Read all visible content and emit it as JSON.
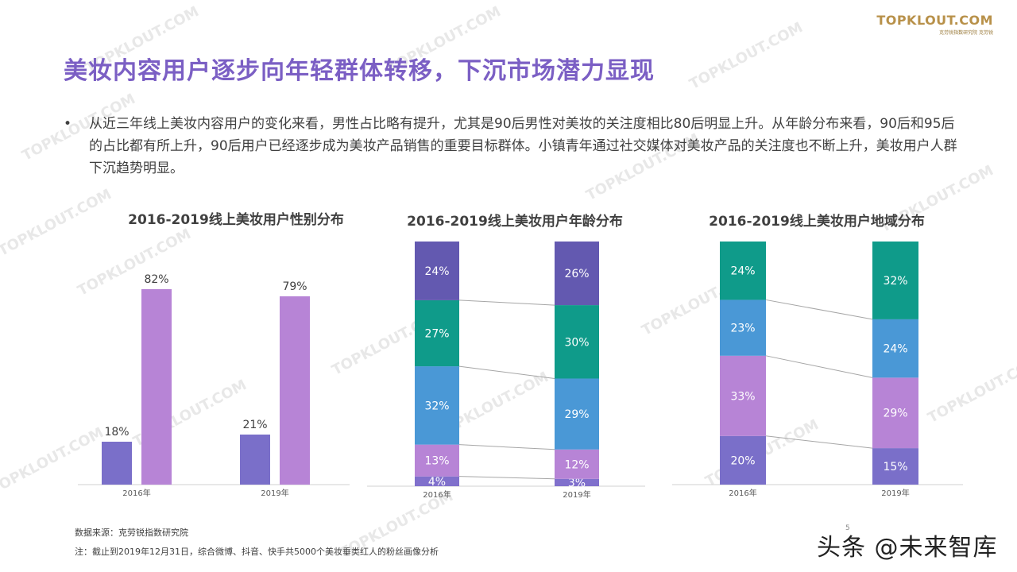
{
  "logo": {
    "main": "TOPKLOUT.COM",
    "sub": "克劳锐指数研究院 克劳锐"
  },
  "title": "美妆内容用户逐步向年轻群体转移，下沉市场潜力显现",
  "bullet": {
    "dot": "•",
    "text": "从近三年线上美妆内容用户的变化来看，男性占比略有提升，尤其是90后男性对美妆的关注度相比80后明显上升。从年龄分布来看，90后和95后的占比都有所上升，90后用户已经逐步成为美妆产品销售的重要目标群体。小镇青年通过社交媒体对美妆产品的关注度也不断上升，美妆用户人群下沉趋势明显。"
  },
  "chart_data": [
    {
      "type": "bar",
      "title": "2016-2019线上美妆用户性别分布",
      "categories": [
        "2016年",
        "2019年"
      ],
      "series": [
        {
          "values": [
            18,
            21
          ],
          "labels": [
            "18%",
            "21%"
          ],
          "color": "#7a6fc9"
        },
        {
          "values": [
            82,
            79
          ],
          "labels": [
            "82%",
            "79%"
          ],
          "color": "#b784d6"
        }
      ],
      "ylim": [
        0,
        100
      ]
    },
    {
      "type": "bar",
      "stacked": true,
      "title": "2016-2019线上美妆用户年龄分布",
      "categories": [
        "2016年",
        "2019年"
      ],
      "series": [
        {
          "values": [
            4,
            3
          ],
          "labels": [
            "4%",
            "3%"
          ],
          "color": "#8070cc"
        },
        {
          "values": [
            13,
            12
          ],
          "labels": [
            "13%",
            "12%"
          ],
          "color": "#b784d6"
        },
        {
          "values": [
            32,
            29
          ],
          "labels": [
            "32%",
            "29%"
          ],
          "color": "#4a98d6"
        },
        {
          "values": [
            27,
            30
          ],
          "labels": [
            "27%",
            "30%"
          ],
          "color": "#0f9b8a"
        },
        {
          "values": [
            24,
            26
          ],
          "labels": [
            "24%",
            "26%"
          ],
          "color": "#6359b0"
        }
      ]
    },
    {
      "type": "bar",
      "stacked": true,
      "title": "2016-2019线上美妆用户地域分布",
      "categories": [
        "2016年",
        "2019年"
      ],
      "series": [
        {
          "values": [
            20,
            15
          ],
          "labels": [
            "20%",
            "15%"
          ],
          "color": "#7a6fc9"
        },
        {
          "values": [
            33,
            29
          ],
          "labels": [
            "33%",
            "29%"
          ],
          "color": "#b784d6"
        },
        {
          "values": [
            23,
            24
          ],
          "labels": [
            "23%",
            "24%"
          ],
          "color": "#4a98d6"
        },
        {
          "values": [
            24,
            32
          ],
          "labels": [
            "24%",
            "32%"
          ],
          "color": "#0f9b8a"
        }
      ]
    }
  ],
  "source": "数据来源：克劳锐指数研究院",
  "note": "注：截止到2019年12月31日，综合微博、抖音、快手共5000个美妆垂类红人的粉丝画像分析",
  "page_number": "5",
  "brand_watermark": "头条 @未来智库",
  "watermark_text": "TOPKLOUT.COM"
}
